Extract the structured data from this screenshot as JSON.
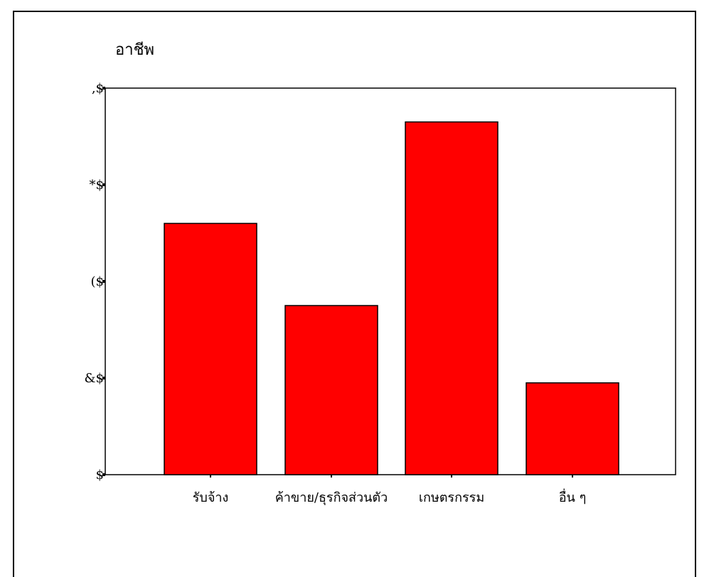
{
  "chart_data": {
    "type": "bar",
    "title": "อาชีพ",
    "xlabel": "",
    "ylabel": "",
    "categories": [
      "รับจ้าง",
      "ค้าขาย/ธุรกิจส่วนตัว",
      "เกษตรกรรม",
      "อื่น ๆ"
    ],
    "values": [
      26,
      17.5,
      36.5,
      9.5
    ],
    "ylim": [
      0,
      40
    ],
    "yticks": [
      0,
      10,
      20,
      30,
      40
    ],
    "ytick_labels": [
      "$",
      "&$",
      "($",
      "*$",
      ",$"
    ],
    "grid": false,
    "legend": "none",
    "colors": {
      "bar": "#ff0000",
      "bar_stroke": "#000000"
    }
  }
}
